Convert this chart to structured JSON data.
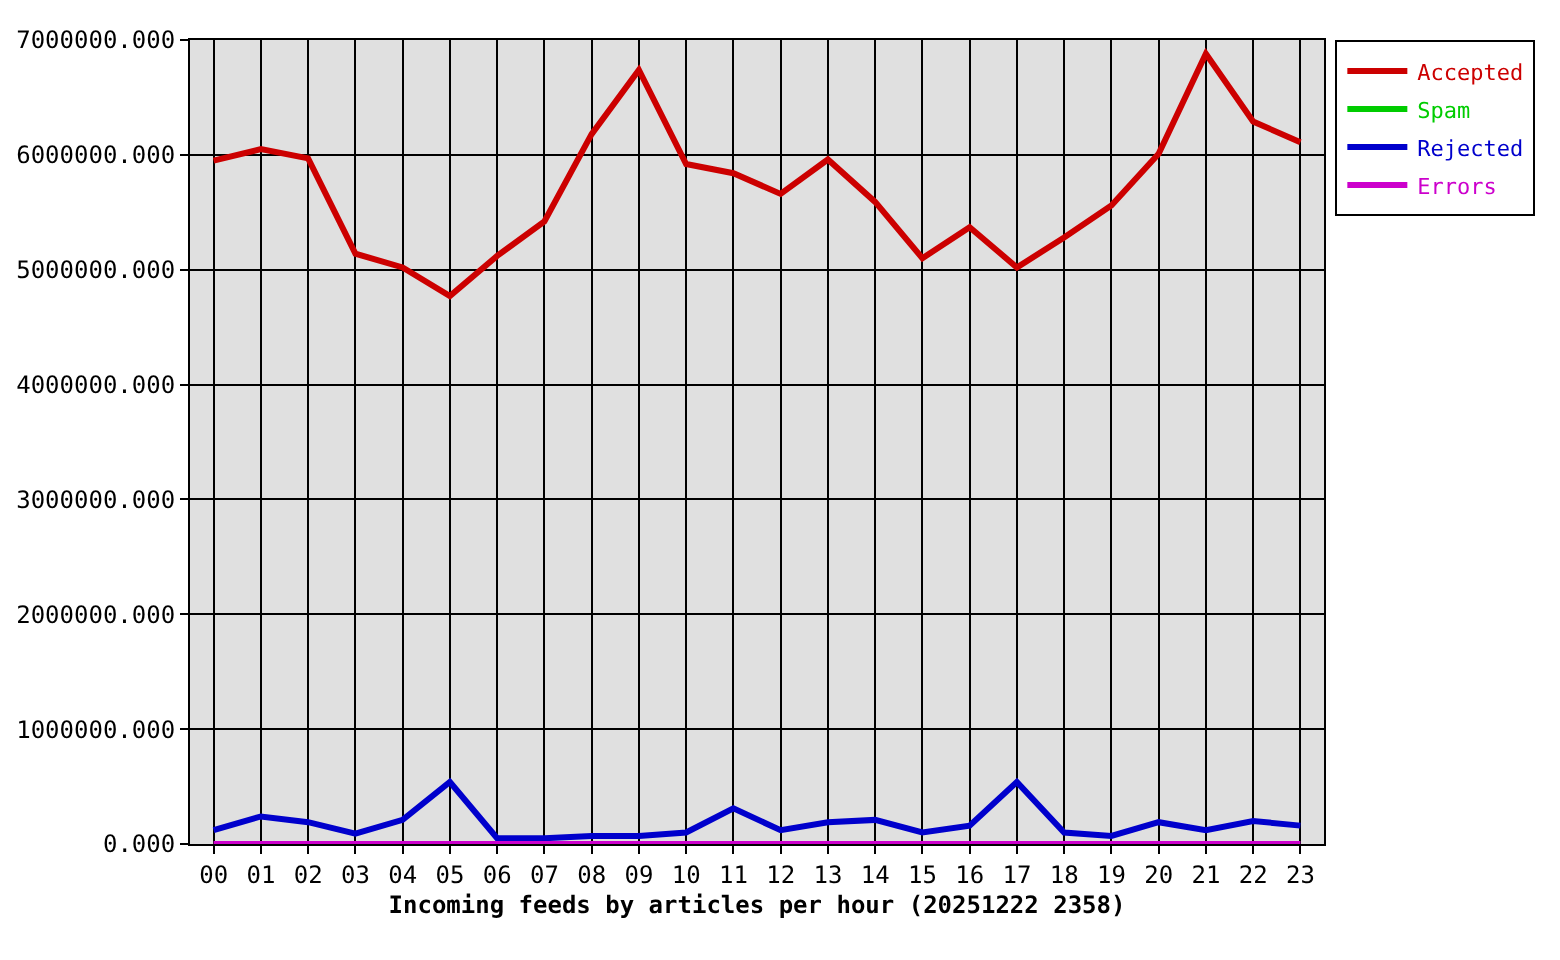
{
  "chart_data": {
    "type": "line",
    "xlabel": "Incoming feeds by articles per hour (20251222 2358)",
    "categories": [
      "00",
      "01",
      "02",
      "03",
      "04",
      "05",
      "06",
      "07",
      "08",
      "09",
      "10",
      "11",
      "12",
      "13",
      "14",
      "15",
      "16",
      "17",
      "18",
      "19",
      "20",
      "21",
      "22",
      "23"
    ],
    "series": [
      {
        "name": "Accepted",
        "color": "#cc0000",
        "values": [
          5950000,
          6050000,
          5970000,
          5140000,
          5020000,
          4770000,
          5120000,
          5420000,
          6180000,
          6740000,
          5920000,
          5840000,
          5660000,
          5960000,
          5590000,
          5100000,
          5370000,
          5020000,
          5280000,
          5560000,
          6010000,
          6880000,
          6290000,
          6110000
        ]
      },
      {
        "name": "Spam",
        "color": "#00cc00",
        "values": [
          null,
          null,
          null,
          null,
          null,
          null,
          null,
          null,
          null,
          null,
          null,
          null,
          null,
          null,
          null,
          null,
          null,
          null,
          null,
          null,
          null,
          null,
          null,
          null
        ]
      },
      {
        "name": "Rejected",
        "color": "#0000cc",
        "values": [
          120000,
          240000,
          190000,
          90000,
          210000,
          540000,
          50000,
          50000,
          70000,
          70000,
          100000,
          310000,
          120000,
          190000,
          210000,
          100000,
          160000,
          540000,
          100000,
          70000,
          190000,
          120000,
          200000,
          160000
        ]
      },
      {
        "name": "Errors",
        "color": "#cc00cc",
        "values": [
          0,
          0,
          0,
          0,
          0,
          0,
          0,
          0,
          0,
          0,
          0,
          0,
          0,
          0,
          0,
          0,
          0,
          0,
          0,
          0,
          0,
          0,
          0,
          0
        ]
      }
    ],
    "ylim": [
      0,
      7000000
    ],
    "yticks": [
      {
        "value": 0,
        "label": "0.000"
      },
      {
        "value": 1000000,
        "label": "1000000.000"
      },
      {
        "value": 2000000,
        "label": "2000000.000"
      },
      {
        "value": 3000000,
        "label": "3000000.000"
      },
      {
        "value": 4000000,
        "label": "4000000.000"
      },
      {
        "value": 5000000,
        "label": "5000000.000"
      },
      {
        "value": 6000000,
        "label": "6000000.000"
      },
      {
        "value": 7000000,
        "label": "7000000.000"
      }
    ],
    "grid": true,
    "legend": "top right",
    "line_style": "solid"
  }
}
